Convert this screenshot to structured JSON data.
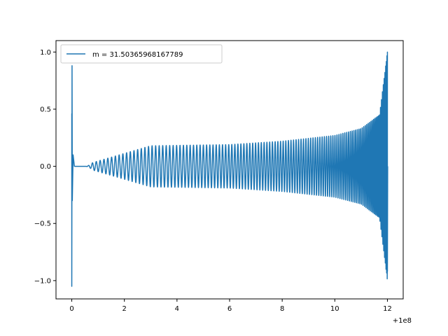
{
  "chart_data": {
    "type": "line",
    "title": "",
    "xlabel": "",
    "ylabel": "",
    "x_offset_label": "+1e8",
    "xlim": [
      -0.6,
      12.6
    ],
    "ylim": [
      -1.16,
      1.1
    ],
    "x_ticks": [
      {
        "value": 0,
        "label": "0"
      },
      {
        "value": 2,
        "label": "2"
      },
      {
        "value": 4,
        "label": "4"
      },
      {
        "value": 6,
        "label": "6"
      },
      {
        "value": 8,
        "label": "8"
      },
      {
        "value": 10,
        "label": "10"
      },
      {
        "value": 12,
        "label": "12"
      }
    ],
    "y_ticks": [
      {
        "value": -1.0,
        "label": "−1.0"
      },
      {
        "value": -0.5,
        "label": "−0.5"
      },
      {
        "value": 0.0,
        "label": "0.0"
      },
      {
        "value": 0.5,
        "label": "0.5"
      },
      {
        "value": 1.0,
        "label": "1.0"
      }
    ],
    "grid": false,
    "legend_position": "top-left",
    "series": [
      {
        "name": "m = 31.50365968167789",
        "color": "#1f77b4",
        "description_points": {
          "x": [
            0,
            0.05,
            0.3,
            3,
            6,
            8,
            10,
            11,
            11.7,
            12
          ],
          "y_envelope": [
            1.05,
            0.88,
            0.0,
            0.18,
            0.19,
            0.22,
            0.27,
            0.33,
            0.45,
            1.0
          ]
        }
      }
    ]
  }
}
